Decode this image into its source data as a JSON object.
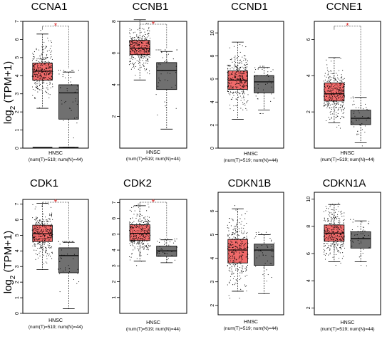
{
  "y_label_main": "log",
  "y_label_sub": "2",
  "y_label_rest": " (TPM+1)",
  "colors": {
    "tumor": "#f06a6a",
    "normal": "#707070",
    "sig": "#e03030"
  },
  "chart_data": [
    {
      "type": "box",
      "title": "CCNA1",
      "ylim": [
        0,
        7
      ],
      "yticks": [
        0,
        1,
        2,
        3,
        4,
        5,
        6,
        7
      ],
      "xlabel": "HNSC",
      "sublabel": "(num(T)=519; num(N)=44)",
      "significant": true,
      "series": [
        {
          "name": "T",
          "n": 519,
          "q1": 3.75,
          "median": 4.25,
          "q3": 4.7,
          "whisker_low": 2.2,
          "whisker_high": 6.3,
          "outlier_max": 6.5,
          "zero_line": true
        },
        {
          "name": "N",
          "n": 44,
          "q1": 1.6,
          "median": 3.05,
          "q3": 3.5,
          "whisker_low": 0.05,
          "whisker_high": 4.2,
          "outlier_max": 4.3,
          "zero_line": true
        }
      ]
    },
    {
      "type": "box",
      "title": "CCNB1",
      "ylim": [
        0,
        8
      ],
      "yticks": [
        2,
        4,
        6,
        8
      ],
      "xlabel": "HNSC",
      "sublabel": "(num(T)=519; num(N)=44)",
      "significant": true,
      "series": [
        {
          "name": "T",
          "n": 519,
          "q1": 5.9,
          "median": 6.3,
          "q3": 6.8,
          "whisker_low": 4.3,
          "whisker_high": 8.1,
          "outlier_max": 8.3,
          "zero_line": false
        },
        {
          "name": "N",
          "n": 44,
          "q1": 3.7,
          "median": 4.9,
          "q3": 5.4,
          "whisker_low": 1.2,
          "whisker_high": 6.1,
          "outlier_max": 6.2,
          "zero_line": false
        }
      ]
    },
    {
      "type": "box",
      "title": "CCND1",
      "ylim": [
        0,
        11
      ],
      "yticks": [
        0,
        2,
        4,
        6,
        8,
        10
      ],
      "xlabel": "HNSC",
      "sublabel": "(num(T)=519; num(N)=44)",
      "significant": false,
      "series": [
        {
          "name": "T",
          "n": 519,
          "q1": 5.1,
          "median": 5.9,
          "q3": 6.7,
          "whisker_low": 2.5,
          "whisker_high": 9.2,
          "outlier_max": 9.8,
          "zero_line": false
        },
        {
          "name": "N",
          "n": 44,
          "q1": 4.8,
          "median": 5.75,
          "q3": 6.3,
          "whisker_low": 3.3,
          "whisker_high": 7.0,
          "outlier_max": 7.1,
          "zero_line": false
        }
      ]
    },
    {
      "type": "box",
      "title": "CCNE1",
      "ylim": [
        0,
        7
      ],
      "yticks": [
        2,
        4,
        6
      ],
      "xlabel": "HNSC",
      "sublabel": "(num(T)=519; num(N)=44)",
      "significant": true,
      "series": [
        {
          "name": "T",
          "n": 519,
          "q1": 2.6,
          "median": 3.0,
          "q3": 3.6,
          "whisker_low": 1.4,
          "whisker_high": 5.0,
          "outlier_max": 6.5,
          "zero_line": false
        },
        {
          "name": "N",
          "n": 44,
          "q1": 1.3,
          "median": 1.65,
          "q3": 2.1,
          "whisker_low": 0.3,
          "whisker_high": 2.8,
          "outlier_max": 2.9,
          "zero_line": false
        }
      ]
    },
    {
      "type": "box",
      "title": "CDK1",
      "ylim": [
        0,
        7.3
      ],
      "yticks": [
        0,
        1,
        2,
        3,
        4,
        5,
        6,
        7
      ],
      "xlabel": "HNSC",
      "sublabel": "(num(T)=519; num(N)=44)",
      "significant": true,
      "series": [
        {
          "name": "T",
          "n": 519,
          "q1": 4.6,
          "median": 5.1,
          "q3": 5.65,
          "whisker_low": 2.8,
          "whisker_high": 7.05,
          "outlier_max": 7.1,
          "zero_line": false
        },
        {
          "name": "N",
          "n": 44,
          "q1": 2.6,
          "median": 3.7,
          "q3": 4.2,
          "whisker_low": 0.3,
          "whisker_high": 4.55,
          "outlier_max": 4.6,
          "zero_line": false
        }
      ]
    },
    {
      "type": "box",
      "title": "CDK2",
      "ylim": [
        0,
        7.2
      ],
      "yticks": [
        1,
        2,
        3,
        4,
        5,
        6,
        7
      ],
      "xlabel": "HNSC",
      "sublabel": "(num(T)=519; num(N)=44)",
      "significant": true,
      "series": [
        {
          "name": "T",
          "n": 519,
          "q1": 4.6,
          "median": 5.05,
          "q3": 5.6,
          "whisker_low": 3.3,
          "whisker_high": 6.8,
          "outlier_max": 6.9,
          "zero_line": false
        },
        {
          "name": "N",
          "n": 44,
          "q1": 3.6,
          "median": 3.95,
          "q3": 4.25,
          "whisker_low": 3.2,
          "whisker_high": 4.65,
          "outlier_max": 4.7,
          "zero_line": false
        }
      ]
    },
    {
      "type": "box",
      "title": "CDKN1B",
      "ylim": [
        1.6,
        6.8
      ],
      "yticks": [
        2,
        3,
        4,
        5,
        6
      ],
      "xlabel": "HNSC",
      "sublabel": "(num(T)=519; num(N)=44)",
      "significant": false,
      "series": [
        {
          "name": "T",
          "n": 519,
          "q1": 3.8,
          "median": 4.35,
          "q3": 4.8,
          "whisker_low": 2.6,
          "whisker_high": 6.1,
          "outlier_max": 6.4,
          "zero_line": false
        },
        {
          "name": "N",
          "n": 44,
          "q1": 3.7,
          "median": 4.35,
          "q3": 4.6,
          "whisker_low": 2.5,
          "whisker_high": 5.0,
          "outlier_max": 5.1,
          "zero_line": false
        }
      ]
    },
    {
      "type": "box",
      "title": "CDKN1A",
      "ylim": [
        1.5,
        10.5
      ],
      "yticks": [
        2,
        4,
        6,
        8,
        10
      ],
      "xlabel": "HNSC",
      "sublabel": "(num(T)=519; num(N)=44)",
      "significant": false,
      "series": [
        {
          "name": "T",
          "n": 519,
          "q1": 6.9,
          "median": 7.5,
          "q3": 8.1,
          "whisker_low": 5.4,
          "whisker_high": 9.6,
          "outlier_max": 9.7,
          "zero_line": false
        },
        {
          "name": "N",
          "n": 44,
          "q1": 6.4,
          "median": 7.1,
          "q3": 7.6,
          "whisker_low": 5.4,
          "whisker_high": 8.4,
          "outlier_max": 8.5,
          "zero_line": false
        }
      ]
    }
  ]
}
